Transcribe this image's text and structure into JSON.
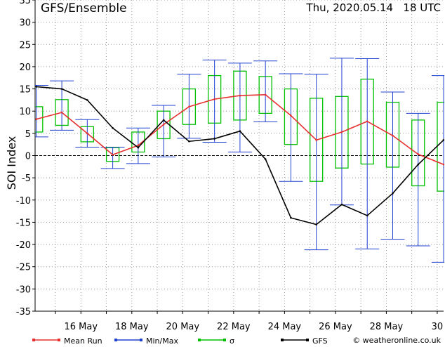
{
  "header": {
    "title": "GFS/Ensemble",
    "timestamp": "Thu, 2020.05.14   18 UTC"
  },
  "footer": {
    "credit": "© weatheronline.co.uk"
  },
  "colors": {
    "mean": "#e83030",
    "minmax": "#2040d0",
    "sigma": "#00c000",
    "gfs": "#000000",
    "grid": "#999999",
    "zero": "#000000"
  },
  "chart_data": {
    "type": "line",
    "title": "GFS/Ensemble",
    "ylabel": "SOI Index",
    "xlabel": "",
    "ylim": [
      -35,
      35
    ],
    "yticks": [
      -35,
      -30,
      -25,
      -20,
      -15,
      -10,
      -5,
      0,
      5,
      10,
      15,
      20,
      25,
      30,
      35
    ],
    "xlim": [
      14.2,
      30.25
    ],
    "xticks": [
      {
        "day": 16,
        "label": "16 May"
      },
      {
        "day": 18,
        "label": "18 May"
      },
      {
        "day": 20,
        "label": "20 May"
      },
      {
        "day": 22,
        "label": "22 May"
      },
      {
        "day": 24,
        "label": "24 May"
      },
      {
        "day": 26,
        "label": "26 May"
      },
      {
        "day": 28,
        "label": "28 May"
      },
      {
        "day": 30,
        "label": "30"
      }
    ],
    "grid": true,
    "legend": "bottom",
    "legend_entries": [
      "Mean Run",
      "Min/Max",
      "σ",
      "GFS"
    ],
    "x": [
      14.25,
      15.25,
      16.25,
      17.25,
      18.25,
      19.25,
      20.25,
      21.25,
      22.25,
      23.25,
      24.25,
      25.25,
      26.25,
      27.25,
      28.25,
      29.25,
      30.25
    ],
    "series": [
      {
        "name": "Mean Run",
        "values": [
          8.2,
          9.7,
          5.0,
          0.2,
          2.3,
          7.0,
          11.0,
          12.7,
          13.5,
          13.7,
          9.0,
          3.5,
          5.3,
          7.7,
          4.5,
          0.3,
          -2.0
        ]
      },
      {
        "name": "GFS",
        "values": [
          15.5,
          15.0,
          12.5,
          6.2,
          1.8,
          8.0,
          3.2,
          3.8,
          5.5,
          -0.8,
          -14.0,
          -15.5,
          -11.0,
          -13.5,
          -8.5,
          -2.0,
          3.5
        ]
      },
      {
        "name": "Min/Max",
        "min": [
          4.2,
          5.7,
          1.9,
          -2.9,
          -1.8,
          -0.3,
          3.9,
          3.0,
          0.8,
          7.6,
          -5.8,
          -21.2,
          -11.1,
          -21.0,
          -18.8,
          -20.3,
          -24.0
        ],
        "max": [
          15.8,
          16.8,
          8.1,
          1.9,
          6.2,
          11.3,
          18.3,
          21.5,
          20.8,
          21.3,
          18.4,
          18.3,
          21.9,
          21.8,
          14.3,
          9.5,
          18.0
        ]
      },
      {
        "name": "σ",
        "low": [
          5.3,
          6.8,
          3.1,
          -1.3,
          0.8,
          3.8,
          7.0,
          7.3,
          8.0,
          9.5,
          2.5,
          -5.8,
          -2.8,
          -1.9,
          -2.6,
          -6.8,
          -8.0
        ],
        "high": [
          11.0,
          12.6,
          6.5,
          1.8,
          5.3,
          10.0,
          15.0,
          18.0,
          19.0,
          17.8,
          15.0,
          12.9,
          13.3,
          17.2,
          12.0,
          8.0,
          12.0
        ]
      }
    ]
  }
}
